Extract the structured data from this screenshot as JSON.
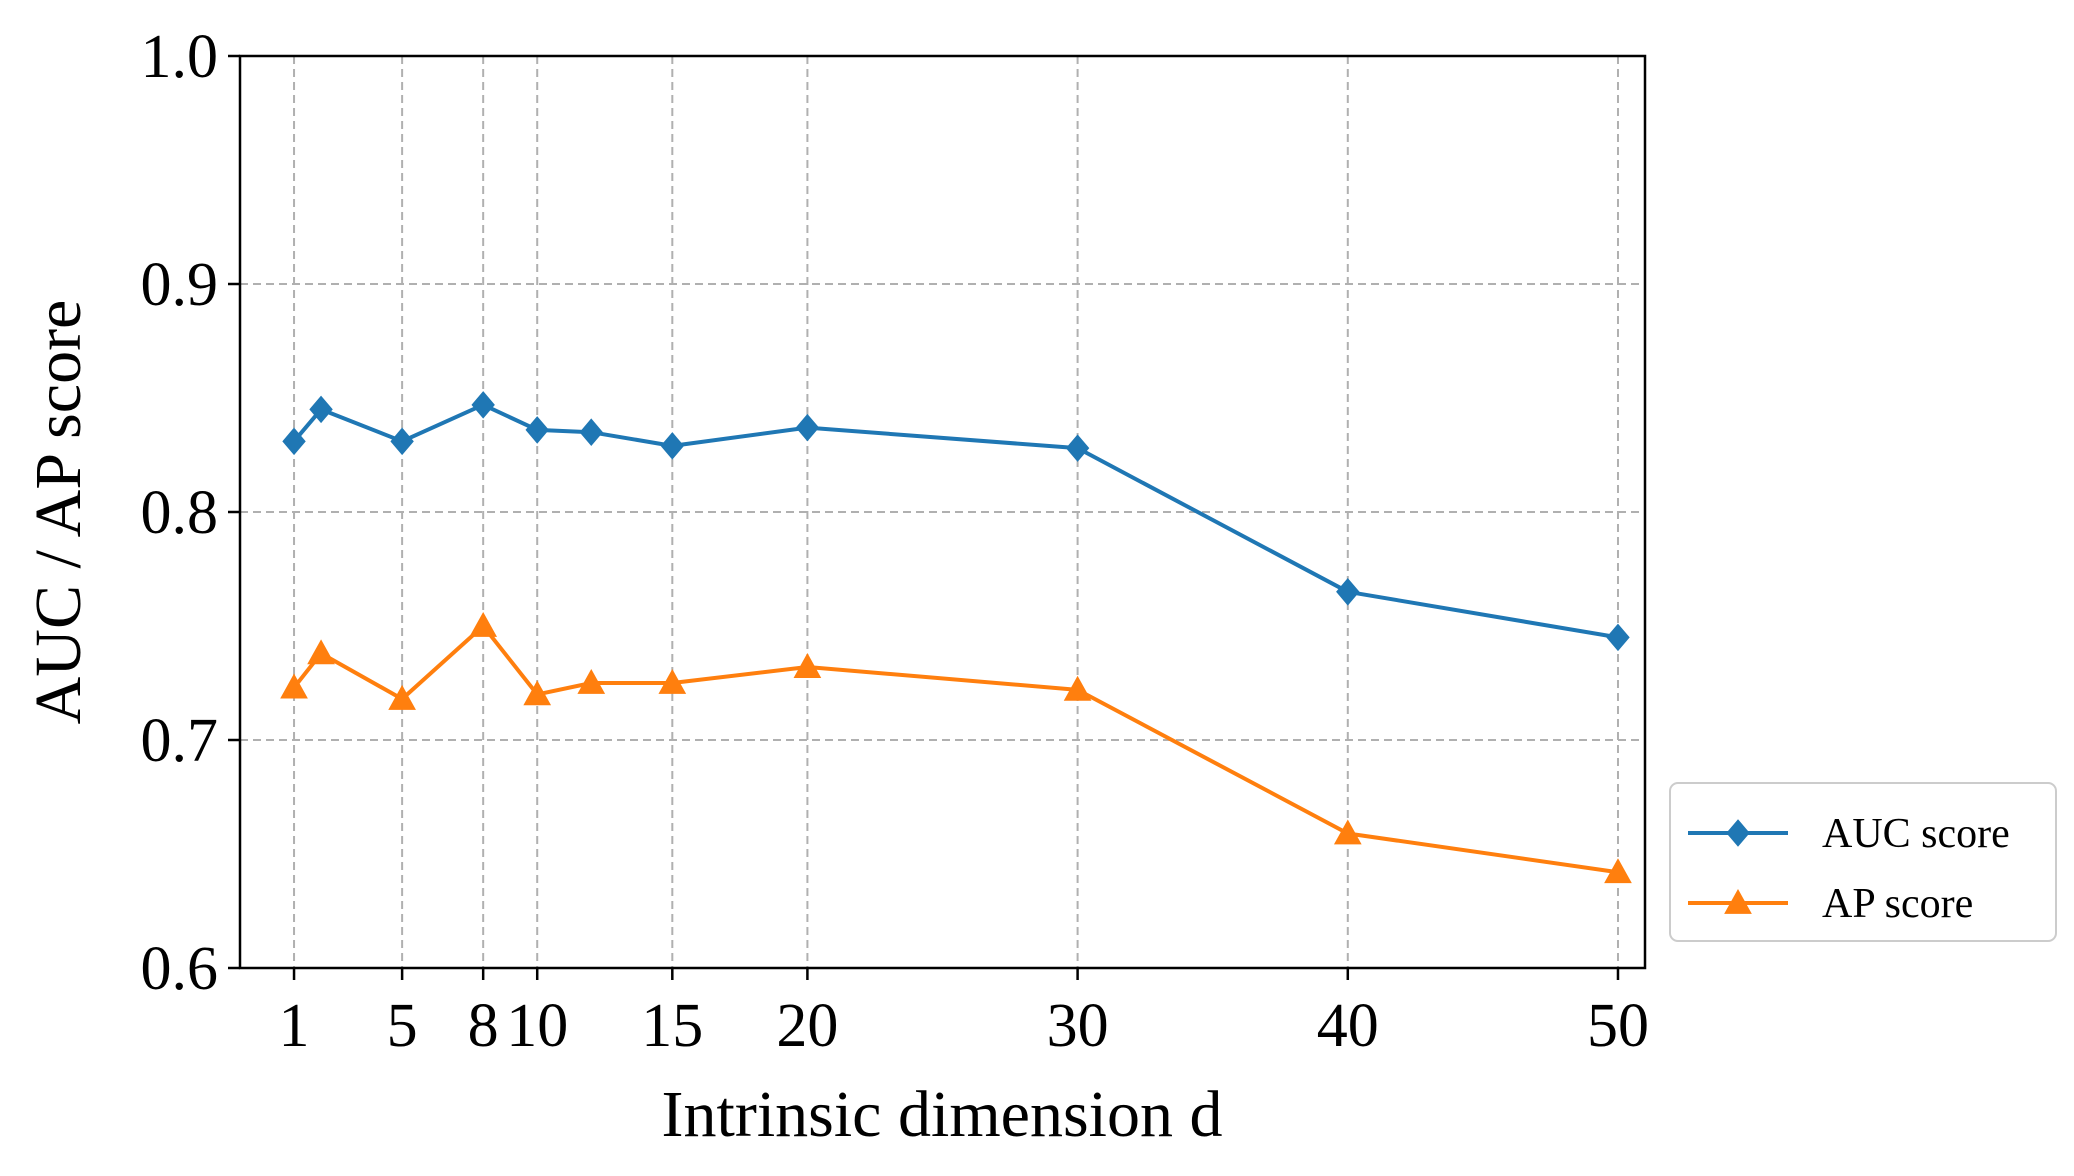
{
  "chart_data": {
    "type": "line",
    "title": "",
    "xlabel": "Intrinsic dimension d",
    "ylabel": "AUC / AP score",
    "x": [
      1,
      2,
      5,
      8,
      10,
      12,
      15,
      20,
      30,
      40,
      50
    ],
    "xticks": [
      1,
      5,
      8,
      10,
      15,
      20,
      30,
      40,
      50
    ],
    "xtick_labels": [
      "1",
      "5",
      "8",
      "10",
      "15",
      "20",
      "30",
      "40",
      "50"
    ],
    "yticks": [
      0.6,
      0.7,
      0.8,
      0.9,
      1.0
    ],
    "ytick_labels": [
      "0.6",
      "0.7",
      "0.8",
      "0.9",
      "1.0"
    ],
    "xlim": [
      -1,
      51
    ],
    "ylim": [
      0.6,
      1.0
    ],
    "grid": true,
    "legend_position": "outside-right-bottom",
    "series": [
      {
        "name": "AUC score",
        "marker": "diamond",
        "color": "#1f77b4",
        "values": [
          0.831,
          0.845,
          0.831,
          0.847,
          0.836,
          0.835,
          0.829,
          0.837,
          0.828,
          0.765,
          0.745
        ]
      },
      {
        "name": "AP score",
        "marker": "triangle",
        "color": "#ff7f0e",
        "values": [
          0.723,
          0.738,
          0.718,
          0.75,
          0.72,
          0.725,
          0.725,
          0.732,
          0.722,
          0.659,
          0.642
        ]
      }
    ]
  },
  "colors": {
    "grid": "#b0b0b0",
    "axis": "#000000",
    "legend_border": "#cccccc"
  }
}
